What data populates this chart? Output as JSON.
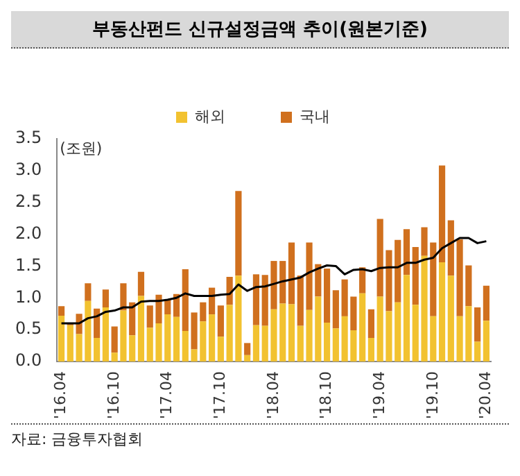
{
  "chart_data": {
    "type": "bar",
    "title": "부동산펀드 신규설정금액 추이(원본기준)",
    "ylabel": "(조원)",
    "annotations": [
      "자료: 금융투자협회"
    ],
    "categories": [
      "'16.04",
      null,
      null,
      null,
      null,
      null,
      "'16.10",
      null,
      null,
      null,
      null,
      null,
      "'17.04",
      null,
      null,
      null,
      null,
      null,
      "'17.10",
      null,
      null,
      null,
      null,
      null,
      "'18.04",
      null,
      null,
      null,
      null,
      null,
      "'18.10",
      null,
      null,
      null,
      null,
      null,
      "'19.04",
      null,
      null,
      null,
      null,
      null,
      "'19.10",
      null,
      null,
      null,
      null,
      null,
      "'20.04"
    ],
    "stacked": true,
    "legend": "top",
    "grid": false,
    "ylim": [
      0,
      3.5
    ],
    "yticks": [
      {
        "value": 0,
        "label": "0.0"
      },
      0.5,
      {
        "value": 1,
        "label": "1.0"
      },
      1.5,
      {
        "value": 2,
        "label": "2.0"
      },
      2.5,
      {
        "value": 3,
        "label": "3.0"
      },
      3.5
    ],
    "series": [
      {
        "name": "해외",
        "color": "#f2c230",
        "values": [
          0.72,
          0.57,
          0.43,
          0.95,
          0.37,
          0.85,
          0.14,
          0.8,
          0.41,
          1.03,
          0.53,
          0.6,
          0.74,
          0.7,
          0.48,
          0.19,
          0.63,
          0.74,
          0.39,
          0.89,
          1.35,
          0.1,
          0.57,
          0.56,
          0.82,
          0.91,
          0.9,
          0.56,
          0.81,
          1.02,
          0.61,
          0.52,
          0.71,
          0.49,
          1.07,
          0.37,
          1.02,
          0.79,
          0.93,
          1.36,
          0.89,
          1.66,
          0.71,
          1.56,
          1.35,
          0.71,
          0.87,
          0.31,
          0.64
        ]
      },
      {
        "name": "국내",
        "color": "#d0701e",
        "values": [
          0.15,
          0.03,
          0.32,
          0.28,
          0.46,
          0.28,
          0.41,
          0.43,
          0.52,
          0.38,
          0.35,
          0.45,
          0.24,
          0.36,
          0.97,
          0.58,
          0.3,
          0.42,
          0.49,
          0.44,
          1.33,
          0.19,
          0.8,
          0.8,
          0.76,
          0.67,
          0.97,
          0.79,
          1.06,
          0.51,
          0.85,
          0.6,
          0.58,
          0.53,
          0.41,
          0.45,
          1.22,
          0.96,
          0.98,
          0.72,
          0.91,
          0.45,
          1.16,
          1.52,
          0.87,
          1.21,
          0.64,
          0.54,
          0.55
        ]
      },
      {
        "type": "line",
        "color": "#000000",
        "marker": "none",
        "values": [
          0.6,
          0.6,
          0.6,
          0.68,
          0.71,
          0.78,
          0.8,
          0.85,
          0.85,
          0.94,
          0.95,
          0.95,
          0.97,
          1.0,
          1.07,
          1.03,
          1.03,
          1.03,
          1.05,
          1.06,
          1.21,
          1.11,
          1.17,
          1.18,
          1.22,
          1.26,
          1.29,
          1.32,
          1.4,
          1.46,
          1.51,
          1.5,
          1.37,
          1.44,
          1.45,
          1.42,
          1.47,
          1.48,
          1.48,
          1.55,
          1.55,
          1.6,
          1.63,
          1.78,
          1.86,
          1.94,
          1.94,
          1.86,
          1.89
        ]
      }
    ]
  }
}
